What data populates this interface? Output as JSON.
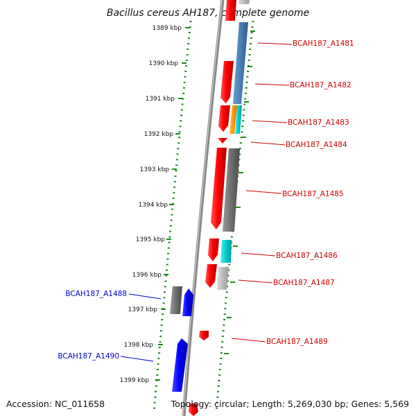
{
  "title": "Bacillus cereus AH187, complete genome",
  "footer": {
    "accession": "Accession: NC_011658",
    "topology": "Topology: circular; Length: 5,269,030 bp; Genes: 5,569"
  },
  "scale_labels": [
    "1389 kbp",
    "1390 kbp",
    "1391 kbp",
    "1392 kbp",
    "1393 kbp",
    "1394 kbp",
    "1395 kbp",
    "1396 kbp",
    "1397 kbp",
    "1398 kbp",
    "1399 kbp"
  ],
  "genes_right": [
    "BCAH187_A1481",
    "BCAH187_A1482",
    "BCAH187_A1483",
    "BCAH187_A1484",
    "BCAH187_A1485",
    "BCAH187_A1486",
    "BCAH187_A1487",
    "BCAH187_A1489"
  ],
  "genes_left": [
    "BCAH187_A1488",
    "BCAH187_A1490"
  ],
  "colors": {
    "forward_gene": "#ff0000",
    "reverse_gene": "#0000ff",
    "right_label": "#cc0000",
    "left_label": "#0000cc",
    "dotted_track": "#1e8a1e",
    "backbone": "#888888",
    "gray_feature": "#777777",
    "light_gray_feature": "#bbbbbb",
    "blue_feature": "#4a7fb5",
    "orange_feature": "#ff9900",
    "cyan_feature": "#00cccc"
  }
}
